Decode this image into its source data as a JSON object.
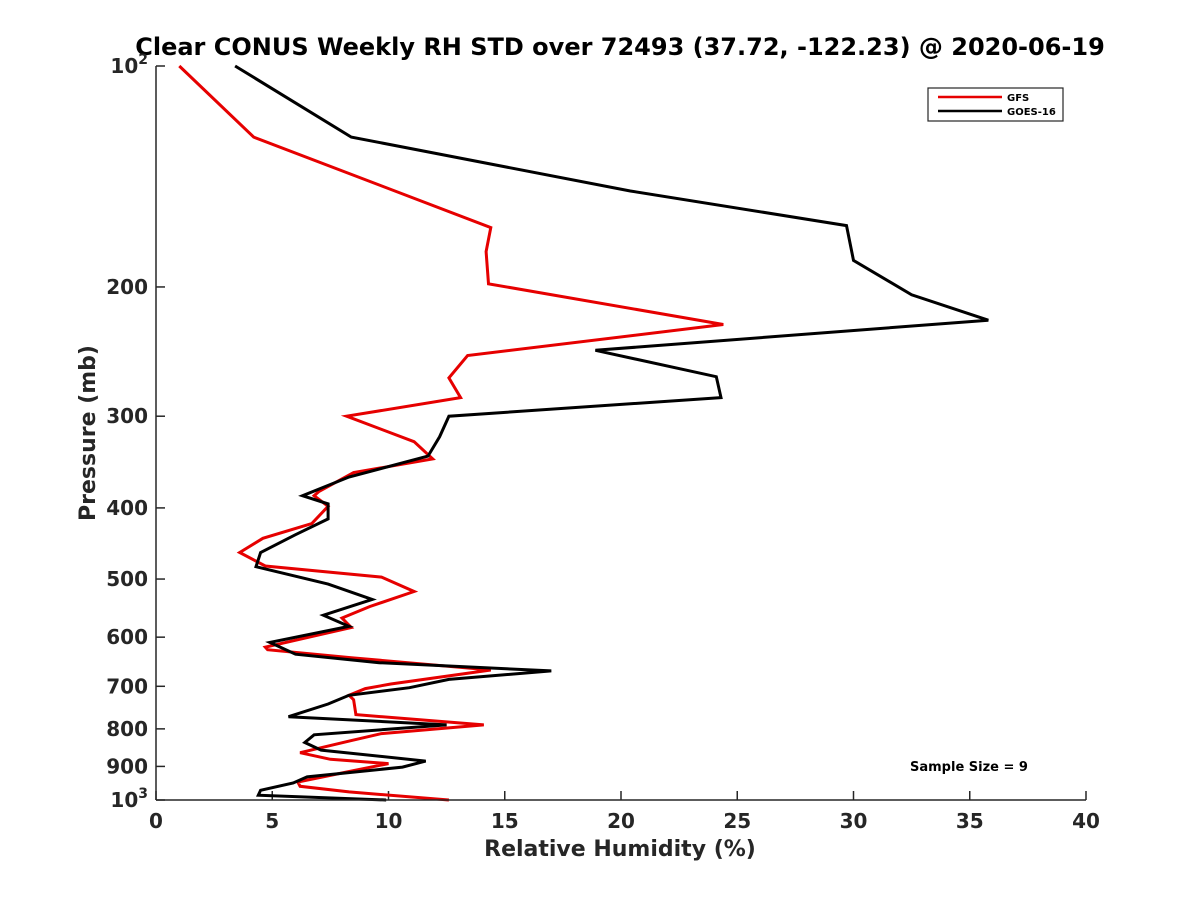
{
  "chart_data": {
    "type": "line",
    "title": "Clear CONUS Weekly RH STD over 72493 (37.72, -122.23) @ 2020-06-19",
    "xlabel": "Relative Humidity (%)",
    "ylabel": "Pressure (mb)",
    "xlim": [
      0,
      40
    ],
    "ylim": [
      100,
      1000
    ],
    "y_scale": "log",
    "y_reversed": true,
    "x_ticks": [
      "0",
      "5",
      "10",
      "15",
      "20",
      "25",
      "30",
      "35",
      "40"
    ],
    "y_ticks": [
      {
        "value": 100,
        "base": "10",
        "exp": "2"
      },
      {
        "value": 200,
        "label": "200"
      },
      {
        "value": 300,
        "label": "300"
      },
      {
        "value": 400,
        "label": "400"
      },
      {
        "value": 500,
        "label": "500"
      },
      {
        "value": 600,
        "label": "600"
      },
      {
        "value": 700,
        "label": "700"
      },
      {
        "value": 800,
        "label": "800"
      },
      {
        "value": 900,
        "label": "900"
      },
      {
        "value": 1000,
        "base": "10",
        "exp": "3"
      }
    ],
    "legend_position": "top-right",
    "annotation": "Sample Size = 9",
    "series": [
      {
        "name": "GFS",
        "color": "#e60000",
        "points": [
          [
            1.0,
            100
          ],
          [
            4.2,
            125
          ],
          [
            14.4,
            166
          ],
          [
            14.2,
            179
          ],
          [
            14.3,
            198
          ],
          [
            24.4,
            225
          ],
          [
            13.4,
            248
          ],
          [
            12.6,
            266
          ],
          [
            13.1,
            283
          ],
          [
            8.2,
            300
          ],
          [
            11.1,
            325
          ],
          [
            11.9,
            343
          ],
          [
            8.5,
            358
          ],
          [
            7.0,
            380
          ],
          [
            6.8,
            385
          ],
          [
            7.4,
            398
          ],
          [
            6.7,
            420
          ],
          [
            4.6,
            440
          ],
          [
            3.6,
            460
          ],
          [
            4.7,
            480
          ],
          [
            9.7,
            497
          ],
          [
            11.1,
            520
          ],
          [
            9.2,
            545
          ],
          [
            8.0,
            565
          ],
          [
            8.4,
            582
          ],
          [
            4.7,
            619
          ],
          [
            4.8,
            624
          ],
          [
            8.4,
            640
          ],
          [
            14.4,
            665
          ],
          [
            10.1,
            695
          ],
          [
            9.0,
            705
          ],
          [
            8.3,
            720
          ],
          [
            8.5,
            730
          ],
          [
            8.6,
            765
          ],
          [
            14.1,
            790
          ],
          [
            9.7,
            812
          ],
          [
            8.4,
            830
          ],
          [
            6.2,
            862
          ],
          [
            7.5,
            880
          ],
          [
            10.0,
            892
          ],
          [
            8.5,
            912
          ],
          [
            6.1,
            945
          ],
          [
            6.2,
            958
          ],
          [
            8.3,
            975
          ],
          [
            12.6,
            1000
          ]
        ]
      },
      {
        "name": "GOES-16",
        "color": "#000000",
        "points": [
          [
            3.4,
            100
          ],
          [
            8.4,
            125
          ],
          [
            20.4,
            148
          ],
          [
            29.7,
            165
          ],
          [
            30.0,
            184
          ],
          [
            32.5,
            205
          ],
          [
            35.8,
            222
          ],
          [
            18.9,
            244
          ],
          [
            24.1,
            265
          ],
          [
            24.3,
            283
          ],
          [
            12.6,
            300
          ],
          [
            12.2,
            320
          ],
          [
            11.7,
            340
          ],
          [
            8.3,
            363
          ],
          [
            6.3,
            385
          ],
          [
            7.4,
            395
          ],
          [
            7.4,
            414
          ],
          [
            6.0,
            435
          ],
          [
            4.5,
            460
          ],
          [
            4.3,
            481
          ],
          [
            7.4,
            508
          ],
          [
            9.3,
            533
          ],
          [
            7.2,
            560
          ],
          [
            8.3,
            580
          ],
          [
            4.9,
            610
          ],
          [
            6.0,
            633
          ],
          [
            9.6,
            650
          ],
          [
            17.0,
            667
          ],
          [
            12.6,
            685
          ],
          [
            10.9,
            703
          ],
          [
            8.3,
            720
          ],
          [
            7.4,
            740
          ],
          [
            5.7,
            770
          ],
          [
            12.5,
            790
          ],
          [
            6.8,
            815
          ],
          [
            6.4,
            835
          ],
          [
            7.1,
            855
          ],
          [
            11.6,
            885
          ],
          [
            10.6,
            902
          ],
          [
            6.5,
            930
          ],
          [
            5.9,
            948
          ],
          [
            4.5,
            970
          ],
          [
            4.4,
            985
          ],
          [
            9.9,
            1000
          ]
        ]
      }
    ]
  }
}
